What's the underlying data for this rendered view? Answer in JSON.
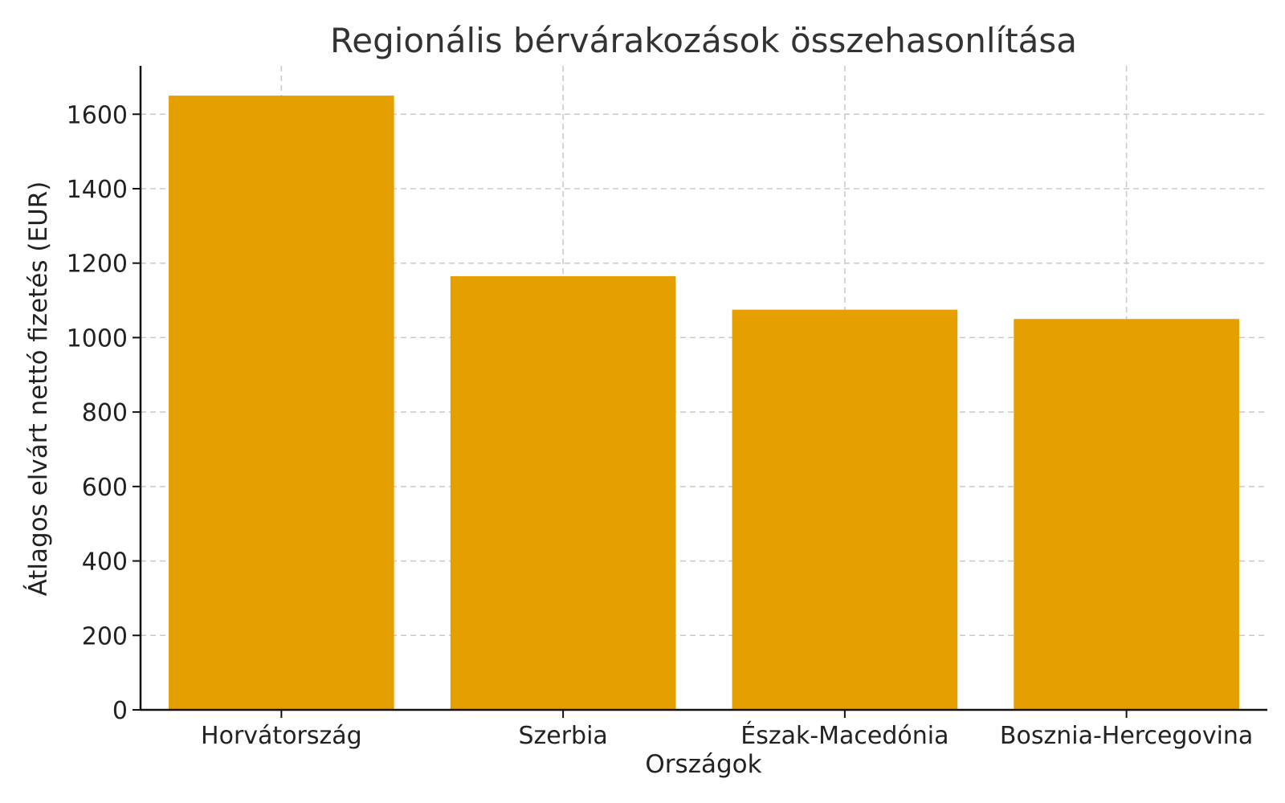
{
  "chart_data": {
    "type": "bar",
    "title": "Regionális bérvárakozások összehasonlítása",
    "xlabel": "Országok",
    "ylabel": "Átlagos elvárt nettó fizetés (EUR)",
    "categories": [
      "Horvátország",
      "Szerbia",
      "Észak-Macedónia",
      "Bosznia-Hercegovina"
    ],
    "values": [
      1650,
      1165,
      1075,
      1050
    ],
    "ylim": [
      0,
      1730
    ],
    "yticks": [
      0,
      200,
      400,
      600,
      800,
      1000,
      1200,
      1400,
      1600
    ],
    "grid": true,
    "bar_color": "#E5A000"
  }
}
